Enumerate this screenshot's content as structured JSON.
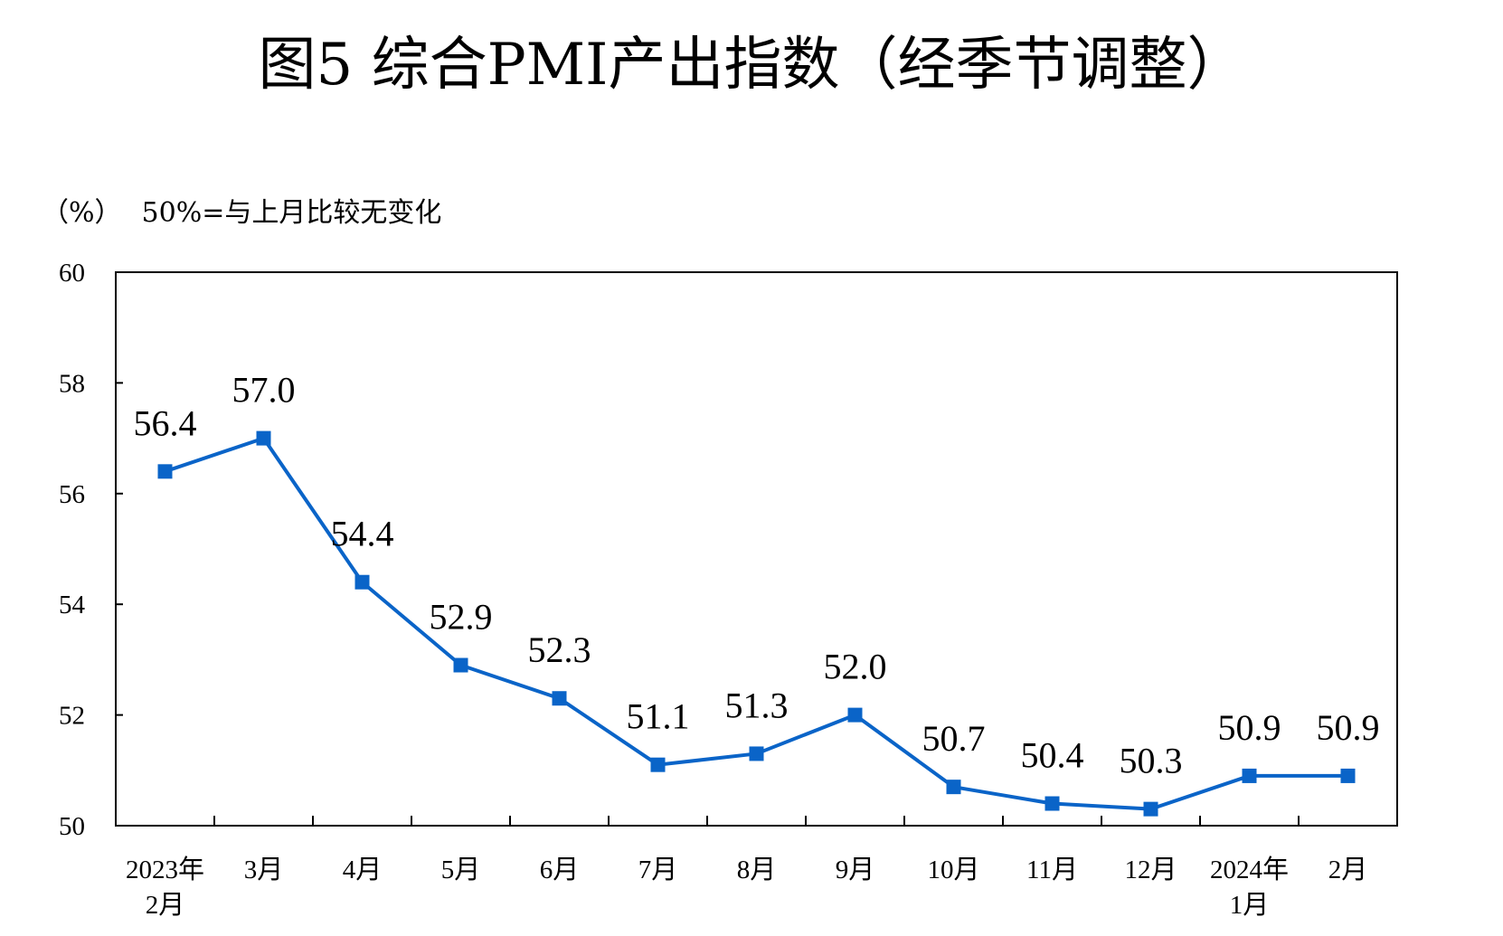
{
  "chart_data": {
    "type": "line",
    "title": "图5  综合PMI产出指数（经季节调整）",
    "unit": "（%）",
    "note": "50%=与上月比较无变化",
    "categories": [
      [
        "2023年",
        "2月"
      ],
      [
        "3月"
      ],
      [
        "4月"
      ],
      [
        "5月"
      ],
      [
        "6月"
      ],
      [
        "7月"
      ],
      [
        "8月"
      ],
      [
        "9月"
      ],
      [
        "10月"
      ],
      [
        "11月"
      ],
      [
        "12月"
      ],
      [
        "2024年",
        "1月"
      ],
      [
        "2月"
      ]
    ],
    "series": [
      {
        "values": [
          56.4,
          57.0,
          54.4,
          52.9,
          52.3,
          51.1,
          51.3,
          52.0,
          50.7,
          50.4,
          50.3,
          50.9,
          50.9
        ],
        "labels": [
          "56.4",
          "57.0",
          "54.4",
          "52.9",
          "52.3",
          "51.1",
          "51.3",
          "52.0",
          "50.7",
          "50.4",
          "50.3",
          "50.9",
          "50.9"
        ],
        "color": "#0a64c8"
      }
    ],
    "ylim": [
      50,
      60
    ],
    "yticks": [
      "50",
      "52",
      "54",
      "56",
      "58",
      "60"
    ],
    "grid": false,
    "legend": "none"
  }
}
